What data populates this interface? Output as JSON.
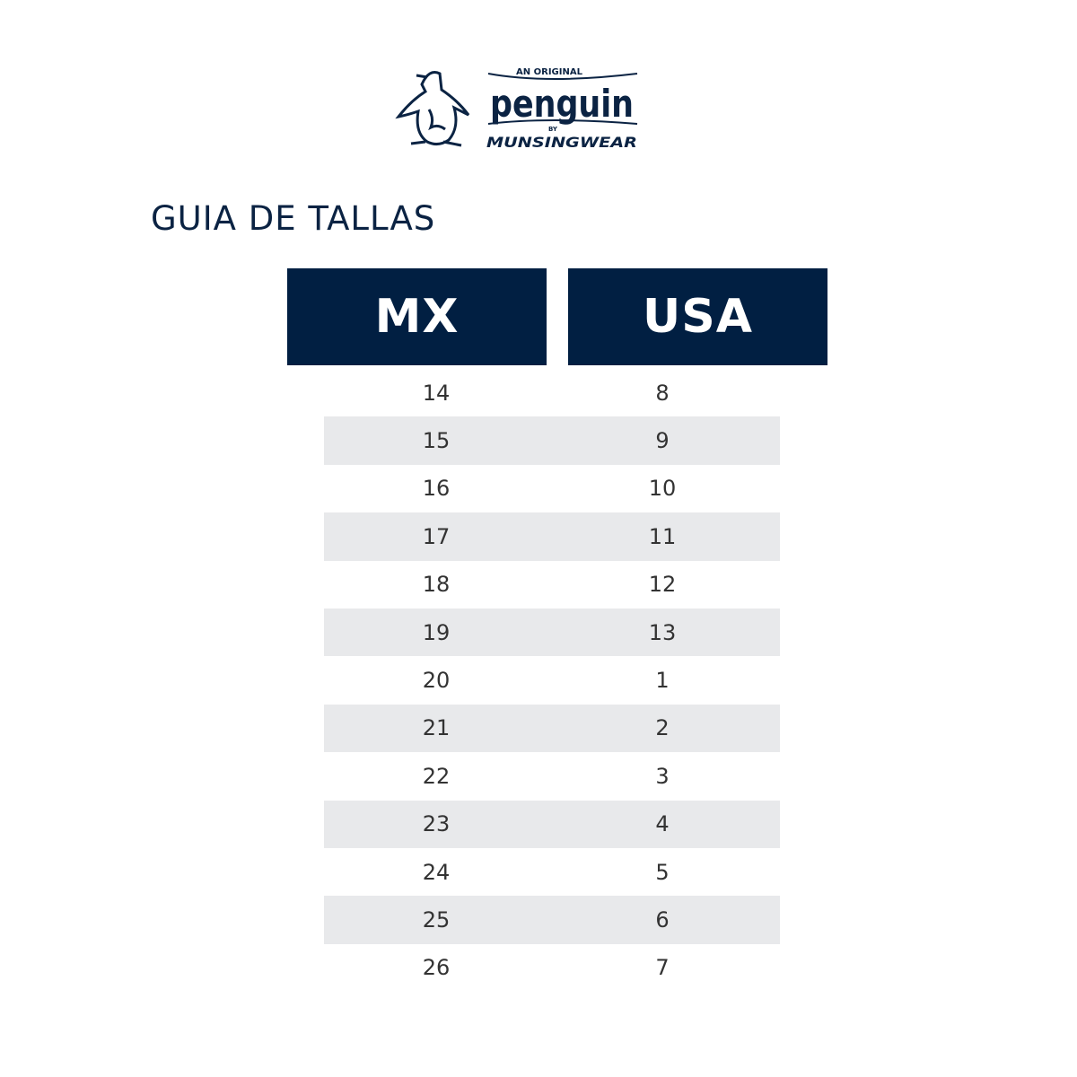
{
  "logo": {
    "top_text": "AN ORIGINAL",
    "main_text": "penguin",
    "by_text": "BY",
    "bottom_text": "MUNSINGWEAR",
    "color": "#0b2343"
  },
  "title": "GUIA DE TALLAS",
  "table": {
    "headers": [
      "MX",
      "USA"
    ],
    "header_color": "#011f42",
    "stripe_color": "#e8e9eb",
    "rows": [
      [
        "14",
        "8"
      ],
      [
        "15",
        "9"
      ],
      [
        "16",
        "10"
      ],
      [
        "17",
        "11"
      ],
      [
        "18",
        "12"
      ],
      [
        "19",
        "13"
      ],
      [
        "20",
        "1"
      ],
      [
        "21",
        "2"
      ],
      [
        "22",
        "3"
      ],
      [
        "23",
        "4"
      ],
      [
        "24",
        "5"
      ],
      [
        "25",
        "6"
      ],
      [
        "26",
        "7"
      ]
    ]
  }
}
